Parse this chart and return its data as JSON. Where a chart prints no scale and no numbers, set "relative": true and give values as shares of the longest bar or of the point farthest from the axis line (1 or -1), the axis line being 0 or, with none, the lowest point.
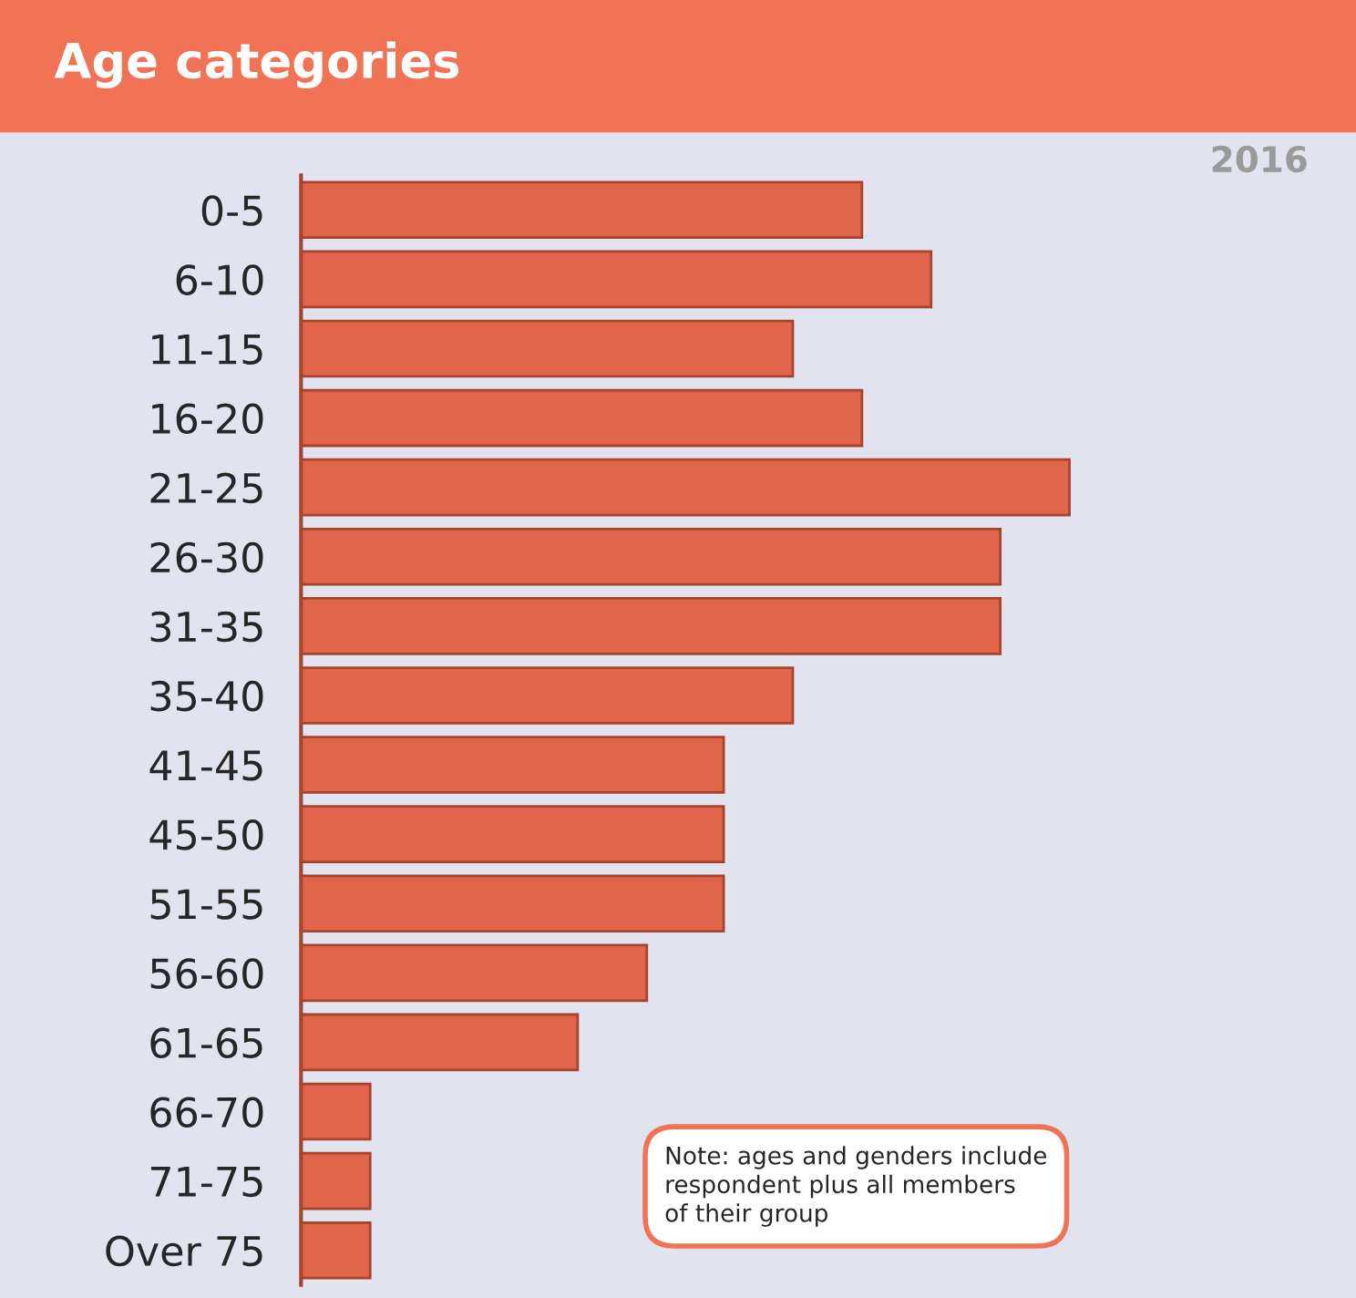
{
  "chart_data": {
    "type": "bar",
    "orientation": "horizontal",
    "relative": true,
    "title": "Age categories",
    "categories": [
      "0-5",
      "6-10",
      "11-15",
      "16-20",
      "21-25",
      "26-30",
      "31-35",
      "35-40",
      "41-45",
      "45-50",
      "51-55",
      "56-60",
      "61-65",
      "66-70",
      "71-75",
      "Over 75"
    ],
    "values": [
      0.73,
      0.82,
      0.64,
      0.73,
      1,
      0.91,
      0.91,
      0.64,
      0.55,
      0.55,
      0.55,
      0.45,
      0.36,
      0.09,
      0.09,
      0.09
    ],
    "color": "#e0654a",
    "grid": false,
    "legend": false,
    "annotations": [
      "2016",
      "Note: ages and genders include\nrespondent plus all members\nof their group"
    ]
  }
}
